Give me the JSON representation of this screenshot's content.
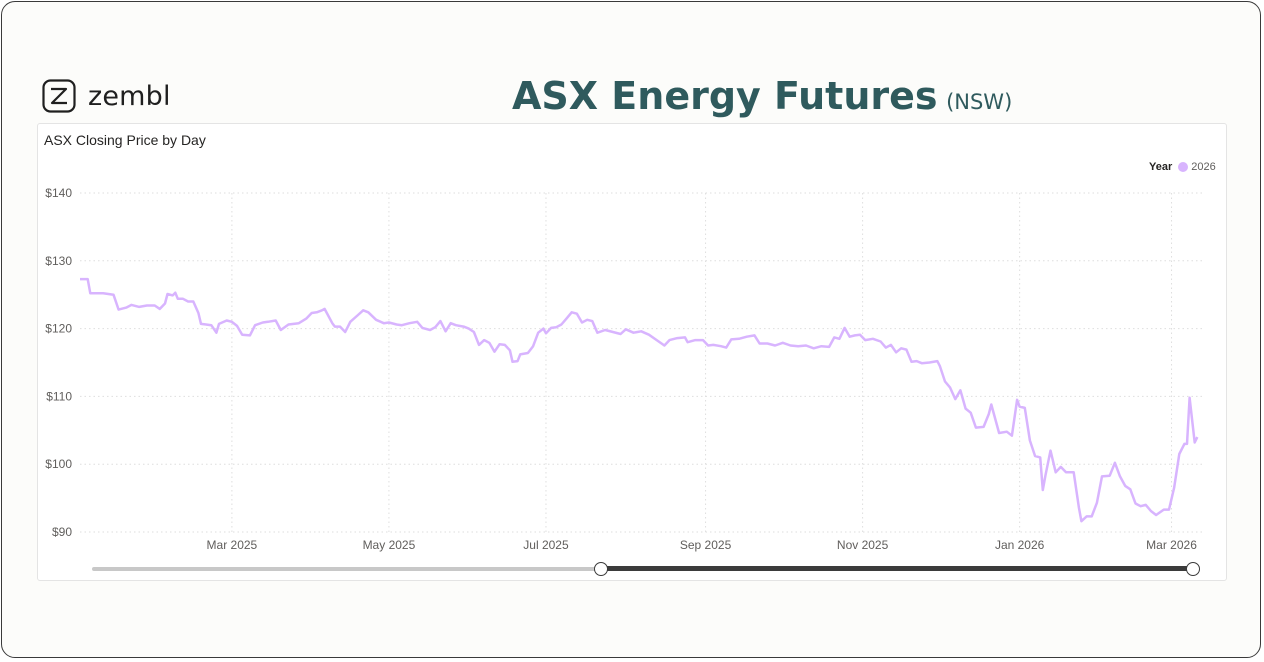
{
  "header": {
    "logo_text": "zembl",
    "title": "ASX Energy Futures",
    "title_suffix": "(NSW)"
  },
  "chart_data": {
    "type": "line",
    "title": "ASX Closing Price by Day",
    "legend": {
      "title": "Year",
      "placement": "top-right",
      "entries": [
        {
          "label": "2026",
          "color": "#d8b4fe"
        }
      ]
    },
    "xlabel": "",
    "ylabel": "",
    "ylim": [
      90,
      140
    ],
    "yticks": [
      {
        "value": 140,
        "label": "$140"
      },
      {
        "value": 130,
        "label": "$130"
      },
      {
        "value": 120,
        "label": "$120"
      },
      {
        "value": 110,
        "label": "$110"
      },
      {
        "value": 100,
        "label": "$100"
      },
      {
        "value": 90,
        "label": "$90"
      }
    ],
    "xlim": [
      "2025-01-01",
      "2026-03-14"
    ],
    "xticks": [
      {
        "date": "2025-03-01",
        "label": "Mar 2025"
      },
      {
        "date": "2025-05-01",
        "label": "May 2025"
      },
      {
        "date": "2025-07-01",
        "label": "Jul 2025"
      },
      {
        "date": "2025-09-01",
        "label": "Sep 2025"
      },
      {
        "date": "2025-11-01",
        "label": "Nov 2025"
      },
      {
        "date": "2026-01-01",
        "label": "Jan 2026"
      },
      {
        "date": "2026-03-01",
        "label": "Mar 2026"
      }
    ],
    "grid": true,
    "series": [
      {
        "name": "2026",
        "color": "#d8b4fe",
        "points": [
          [
            "2025-01-01",
            127.3
          ],
          [
            "2025-01-04",
            127.3
          ],
          [
            "2025-01-05",
            125.2
          ],
          [
            "2025-01-10",
            125.2
          ],
          [
            "2025-01-14",
            125.0
          ],
          [
            "2025-01-16",
            122.8
          ],
          [
            "2025-01-19",
            123.1
          ],
          [
            "2025-01-21",
            123.5
          ],
          [
            "2025-01-24",
            123.2
          ],
          [
            "2025-01-27",
            123.4
          ],
          [
            "2025-01-30",
            123.4
          ],
          [
            "2025-02-01",
            122.9
          ],
          [
            "2025-02-03",
            123.7
          ],
          [
            "2025-02-04",
            125.1
          ],
          [
            "2025-02-06",
            124.9
          ],
          [
            "2025-02-07",
            125.3
          ],
          [
            "2025-02-08",
            124.4
          ],
          [
            "2025-02-10",
            124.4
          ],
          [
            "2025-02-12",
            124.0
          ],
          [
            "2025-02-14",
            124.0
          ],
          [
            "2025-02-16",
            122.3
          ],
          [
            "2025-02-17",
            120.7
          ],
          [
            "2025-02-19",
            120.6
          ],
          [
            "2025-02-21",
            120.5
          ],
          [
            "2025-02-23",
            119.4
          ],
          [
            "2025-02-24",
            120.7
          ],
          [
            "2025-02-27",
            121.2
          ],
          [
            "2025-03-01",
            121.0
          ],
          [
            "2025-03-03",
            120.4
          ],
          [
            "2025-03-05",
            119.1
          ],
          [
            "2025-03-08",
            119.0
          ],
          [
            "2025-03-10",
            120.5
          ],
          [
            "2025-03-13",
            120.9
          ],
          [
            "2025-03-15",
            121.0
          ],
          [
            "2025-03-18",
            121.2
          ],
          [
            "2025-03-20",
            119.8
          ],
          [
            "2025-03-23",
            120.6
          ],
          [
            "2025-03-27",
            120.8
          ],
          [
            "2025-03-30",
            121.5
          ],
          [
            "2025-04-01",
            122.3
          ],
          [
            "2025-04-03",
            122.4
          ],
          [
            "2025-04-05",
            122.7
          ],
          [
            "2025-04-06",
            122.9
          ],
          [
            "2025-04-09",
            120.8
          ],
          [
            "2025-04-10",
            120.3
          ],
          [
            "2025-04-12",
            120.3
          ],
          [
            "2025-04-14",
            119.5
          ],
          [
            "2025-04-16",
            121.0
          ],
          [
            "2025-04-19",
            122.0
          ],
          [
            "2025-04-21",
            122.7
          ],
          [
            "2025-04-23",
            122.4
          ],
          [
            "2025-04-26",
            121.3
          ],
          [
            "2025-04-29",
            120.8
          ],
          [
            "2025-05-01",
            120.9
          ],
          [
            "2025-05-04",
            120.6
          ],
          [
            "2025-05-06",
            120.5
          ],
          [
            "2025-05-09",
            120.8
          ],
          [
            "2025-05-12",
            121.0
          ],
          [
            "2025-05-14",
            120.1
          ],
          [
            "2025-05-17",
            119.8
          ],
          [
            "2025-05-19",
            120.2
          ],
          [
            "2025-05-21",
            121.1
          ],
          [
            "2025-05-23",
            119.6
          ],
          [
            "2025-05-25",
            120.8
          ],
          [
            "2025-05-27",
            120.5
          ],
          [
            "2025-05-30",
            120.3
          ],
          [
            "2025-06-01",
            120.0
          ],
          [
            "2025-06-03",
            119.5
          ],
          [
            "2025-06-05",
            117.6
          ],
          [
            "2025-06-07",
            118.3
          ],
          [
            "2025-06-09",
            117.9
          ],
          [
            "2025-06-11",
            116.6
          ],
          [
            "2025-06-13",
            117.7
          ],
          [
            "2025-06-15",
            117.6
          ],
          [
            "2025-06-17",
            116.8
          ],
          [
            "2025-06-18",
            115.1
          ],
          [
            "2025-06-20",
            115.2
          ],
          [
            "2025-06-21",
            116.2
          ],
          [
            "2025-06-24",
            116.4
          ],
          [
            "2025-06-26",
            117.4
          ],
          [
            "2025-06-28",
            119.4
          ],
          [
            "2025-06-30",
            120.0
          ],
          [
            "2025-07-01",
            119.3
          ],
          [
            "2025-07-03",
            120.1
          ],
          [
            "2025-07-05",
            120.2
          ],
          [
            "2025-07-07",
            120.6
          ],
          [
            "2025-07-09",
            121.5
          ],
          [
            "2025-07-11",
            122.4
          ],
          [
            "2025-07-13",
            122.2
          ],
          [
            "2025-07-15",
            120.9
          ],
          [
            "2025-07-17",
            121.3
          ],
          [
            "2025-07-19",
            121.1
          ],
          [
            "2025-07-21",
            119.4
          ],
          [
            "2025-07-24",
            119.8
          ],
          [
            "2025-07-27",
            119.5
          ],
          [
            "2025-07-30",
            119.2
          ],
          [
            "2025-08-01",
            119.9
          ],
          [
            "2025-08-04",
            119.4
          ],
          [
            "2025-08-07",
            119.6
          ],
          [
            "2025-08-10",
            119.1
          ],
          [
            "2025-08-13",
            118.3
          ],
          [
            "2025-08-16",
            117.5
          ],
          [
            "2025-08-18",
            118.3
          ],
          [
            "2025-08-21",
            118.6
          ],
          [
            "2025-08-24",
            118.7
          ],
          [
            "2025-08-25",
            118.0
          ],
          [
            "2025-08-28",
            118.3
          ],
          [
            "2025-08-31",
            118.3
          ],
          [
            "2025-09-02",
            117.5
          ],
          [
            "2025-09-04",
            117.6
          ],
          [
            "2025-09-07",
            117.4
          ],
          [
            "2025-09-09",
            117.2
          ],
          [
            "2025-09-11",
            118.4
          ],
          [
            "2025-09-14",
            118.5
          ],
          [
            "2025-09-17",
            118.8
          ],
          [
            "2025-09-20",
            119.0
          ],
          [
            "2025-09-22",
            117.8
          ],
          [
            "2025-09-25",
            117.8
          ],
          [
            "2025-09-28",
            117.5
          ],
          [
            "2025-10-01",
            117.9
          ],
          [
            "2025-10-04",
            117.5
          ],
          [
            "2025-10-07",
            117.4
          ],
          [
            "2025-10-10",
            117.5
          ],
          [
            "2025-10-13",
            117.1
          ],
          [
            "2025-10-16",
            117.4
          ],
          [
            "2025-10-19",
            117.3
          ],
          [
            "2025-10-21",
            118.7
          ],
          [
            "2025-10-23",
            118.5
          ],
          [
            "2025-10-25",
            120.1
          ],
          [
            "2025-10-27",
            118.8
          ],
          [
            "2025-10-29",
            119.0
          ],
          [
            "2025-10-31",
            119.1
          ],
          [
            "2025-11-02",
            118.3
          ],
          [
            "2025-11-05",
            118.5
          ],
          [
            "2025-11-08",
            118.1
          ],
          [
            "2025-11-10",
            117.2
          ],
          [
            "2025-11-12",
            117.6
          ],
          [
            "2025-11-14",
            116.5
          ],
          [
            "2025-11-16",
            117.1
          ],
          [
            "2025-11-18",
            116.9
          ],
          [
            "2025-11-20",
            115.1
          ],
          [
            "2025-11-22",
            115.2
          ],
          [
            "2025-11-24",
            114.9
          ],
          [
            "2025-11-27",
            115.0
          ],
          [
            "2025-11-30",
            115.2
          ],
          [
            "2025-12-01",
            114.5
          ],
          [
            "2025-12-03",
            112.2
          ],
          [
            "2025-12-05",
            111.3
          ],
          [
            "2025-12-07",
            109.6
          ],
          [
            "2025-12-09",
            110.9
          ],
          [
            "2025-12-11",
            108.2
          ],
          [
            "2025-12-13",
            107.6
          ],
          [
            "2025-12-15",
            105.4
          ],
          [
            "2025-12-18",
            105.5
          ],
          [
            "2025-12-20",
            107.4
          ],
          [
            "2025-12-21",
            108.8
          ],
          [
            "2025-12-22",
            107.4
          ],
          [
            "2025-12-24",
            104.6
          ],
          [
            "2025-12-27",
            104.8
          ],
          [
            "2025-12-29",
            104.2
          ],
          [
            "2025-12-31",
            109.5
          ],
          [
            "2026-01-01",
            108.5
          ],
          [
            "2026-01-03",
            108.3
          ],
          [
            "2026-01-05",
            103.5
          ],
          [
            "2026-01-07",
            101.2
          ],
          [
            "2026-01-09",
            101.0
          ],
          [
            "2026-01-10",
            96.2
          ],
          [
            "2026-01-11",
            98.3
          ],
          [
            "2026-01-13",
            102.0
          ],
          [
            "2026-01-15",
            98.8
          ],
          [
            "2026-01-17",
            99.6
          ],
          [
            "2026-01-19",
            98.8
          ],
          [
            "2026-01-22",
            98.8
          ],
          [
            "2026-01-24",
            93.6
          ],
          [
            "2026-01-25",
            91.6
          ],
          [
            "2026-01-27",
            92.3
          ],
          [
            "2026-01-29",
            92.3
          ],
          [
            "2026-01-31",
            94.3
          ],
          [
            "2026-02-02",
            98.2
          ],
          [
            "2026-02-05",
            98.3
          ],
          [
            "2026-02-07",
            100.2
          ],
          [
            "2026-02-09",
            98.2
          ],
          [
            "2026-02-11",
            96.8
          ],
          [
            "2026-02-13",
            96.3
          ],
          [
            "2026-02-15",
            94.2
          ],
          [
            "2026-02-17",
            93.8
          ],
          [
            "2026-02-19",
            94.0
          ],
          [
            "2026-02-21",
            93.1
          ],
          [
            "2026-02-23",
            92.5
          ],
          [
            "2026-02-26",
            93.3
          ],
          [
            "2026-02-28",
            93.3
          ],
          [
            "2026-03-02",
            96.5
          ],
          [
            "2026-03-04",
            101.5
          ],
          [
            "2026-03-06",
            103.0
          ],
          [
            "2026-03-07",
            103.0
          ],
          [
            "2026-03-08",
            109.8
          ],
          [
            "2026-03-10",
            103.2
          ],
          [
            "2026-03-11",
            104.0
          ]
        ]
      }
    ]
  },
  "range_slider": {
    "start_fraction": 0.4565,
    "end_fraction": 1.0
  }
}
